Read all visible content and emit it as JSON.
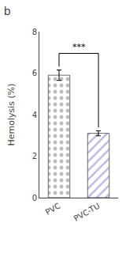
{
  "chart_data": {
    "type": "bar",
    "title": "b",
    "categories": [
      "PVC",
      "PVC-TU"
    ],
    "values": [
      5.9,
      3.1
    ],
    "errors": [
      0.25,
      0.12
    ],
    "colors": [
      "#7a7a7a",
      "#7070cc"
    ],
    "ylabel": "Hemolysis (%)",
    "ylim": [
      0,
      8
    ],
    "yticks": [
      0,
      2,
      4,
      6,
      8
    ],
    "grid": false,
    "annotations": [
      {
        "text": "***"
      }
    ]
  }
}
